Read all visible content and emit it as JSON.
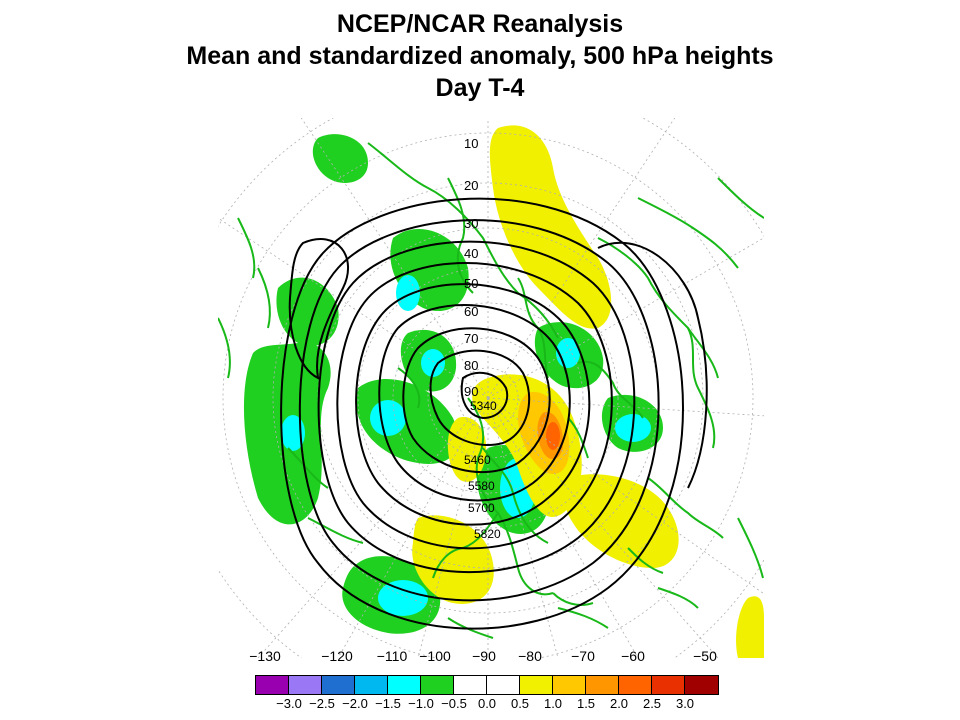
{
  "title": {
    "line1": "NCEP/NCAR Reanalysis",
    "line2": "Mean and standardized anomaly, 500 hPa heights",
    "line3": "Day T-4"
  },
  "map": {
    "projection": "north-polar-stereographic",
    "latitude_labels": [
      "10",
      "20",
      "30",
      "40",
      "50",
      "60",
      "70",
      "80",
      "90"
    ],
    "contour_labels": [
      "5340",
      "5460",
      "5580",
      "5700",
      "5820"
    ],
    "longitude_labels": [
      "−130",
      "−120",
      "−110",
      "−100",
      "−90",
      "−80",
      "−70",
      "−60",
      "−50"
    ],
    "land_outline_color": "#18b818",
    "contour_color": "#000000"
  },
  "colorbar": {
    "colors": [
      "#9800b0",
      "#9a78f5",
      "#1f6fd0",
      "#00b8f0",
      "#00ffff",
      "#20d020",
      "#ffffff",
      "#ffffff",
      "#f0f000",
      "#ffc800",
      "#ff9600",
      "#ff6400",
      "#e83000",
      "#a00000"
    ],
    "labels": [
      "−3.0",
      "−2.5",
      "−2.0",
      "−1.5",
      "−1.0",
      "−0.5",
      "0.0",
      "0.5",
      "1.0",
      "1.5",
      "2.0",
      "2.5",
      "3.0"
    ]
  }
}
